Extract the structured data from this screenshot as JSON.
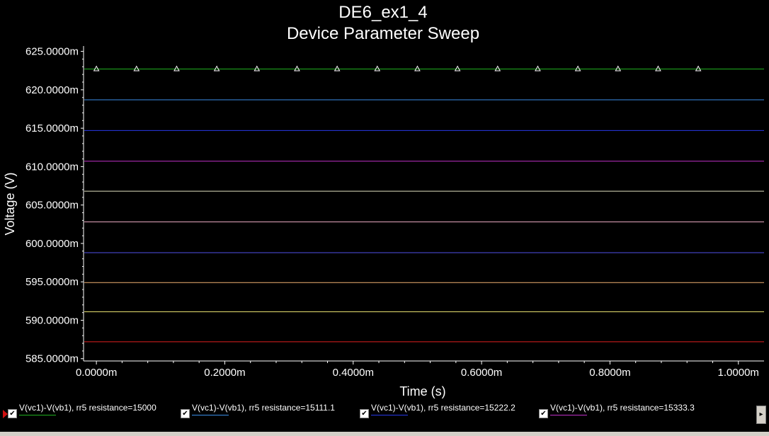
{
  "chart_data": {
    "type": "line",
    "title": "DE6_ex1_4",
    "subtitle": "Device Parameter Sweep",
    "xlabel": "Time (s)",
    "ylabel": "Voltage (V)",
    "xlim": [
      -2e-05,
      0.00104
    ],
    "ylim": [
      0.5847,
      0.6257
    ],
    "x_ticks": [
      0,
      0.0002,
      0.0004,
      0.0006,
      0.0008,
      0.001
    ],
    "x_tick_labels": [
      "0.0000m",
      "0.2000m",
      "0.4000m",
      "0.6000m",
      "0.8000m",
      "1.0000m"
    ],
    "y_ticks": [
      0.585,
      0.59,
      0.595,
      0.6,
      0.605,
      0.61,
      0.615,
      0.62,
      0.625
    ],
    "y_tick_labels": [
      "585.0000m",
      "590.0000m",
      "595.0000m",
      "600.0000m",
      "605.0000m",
      "610.0000m",
      "615.0000m",
      "620.0000m",
      "625.0000m"
    ],
    "grid": false,
    "legend_position": "bottom",
    "series": [
      {
        "name": "V(vc1)-V(vb1), rr5 resistance=15000",
        "color": "#20b020",
        "y": 0.6227,
        "marker": "triangle"
      },
      {
        "name": "V(vc1)-V(vb1), rr5 resistance=15111.1",
        "color": "#3a8ee8",
        "y": 0.6187
      },
      {
        "name": "V(vc1)-V(vb1), rr5 resistance=15222.2",
        "color": "#2838e8",
        "y": 0.6147
      },
      {
        "name": "V(vc1)-V(vb1), rr5 resistance=15333.3",
        "color": "#c030c8",
        "y": 0.6107
      },
      {
        "color": "#e0e0c0",
        "y": 0.6068
      },
      {
        "color": "#e8a8c0",
        "y": 0.6028
      },
      {
        "color": "#5050e8",
        "y": 0.5988
      },
      {
        "color": "#f0b070",
        "y": 0.5949
      },
      {
        "color": "#e8e070",
        "y": 0.5911
      },
      {
        "color": "#e02020",
        "y": 0.5872
      }
    ],
    "marker_x": [
      0,
      6.25e-05,
      0.000125,
      0.0001875,
      0.00025,
      0.0003125,
      0.000375,
      0.0004375,
      0.0005,
      0.0005625,
      0.000625,
      0.0006875,
      0.00075,
      0.0008125,
      0.000875,
      0.0009375
    ]
  },
  "legend": {
    "items": [
      {
        "label": "V(vc1)-V(vb1), rr5 resistance=15000",
        "color": "#20b020",
        "checked": "✔"
      },
      {
        "label": "V(vc1)-V(vb1), rr5 resistance=15111.1",
        "color": "#3a8ee8",
        "checked": "✔"
      },
      {
        "label": "V(vc1)-V(vb1), rr5 resistance=15222.2",
        "color": "#2838e8",
        "checked": "✔"
      },
      {
        "label": "V(vc1)-V(vb1), rr5 resistance=15333.3",
        "color": "#c030c8",
        "checked": "✔"
      }
    ],
    "scroll_icon": "▸"
  }
}
